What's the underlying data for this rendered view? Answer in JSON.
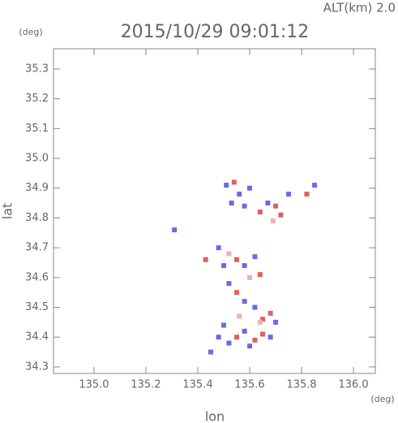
{
  "chart_data": {
    "type": "scatter",
    "title": "2015/10/29 09:01:12",
    "subtitle": "ALT(km) 2.0",
    "x_label": "lon",
    "y_label": "lat",
    "x_unit": "(deg)",
    "y_unit": "(deg)",
    "xlim": [
      134.844,
      136.084
    ],
    "ylim": [
      34.278,
      35.368
    ],
    "xticks": [
      {
        "value": 135.0,
        "label": "135.0"
      },
      135.2,
      135.4,
      135.6,
      135.8,
      {
        "value": 136.0,
        "label": "136.0"
      }
    ],
    "yticks": [
      34.3,
      34.4,
      34.5,
      34.6,
      34.7,
      34.8,
      34.9,
      {
        "value": 35.0,
        "label": "35.0"
      },
      35.1,
      35.2,
      35.3
    ],
    "x": [
      135.54,
      135.51,
      135.56,
      135.6,
      135.53,
      135.58,
      135.64,
      135.67,
      135.7,
      135.72,
      135.75,
      135.82,
      135.85,
      135.69,
      135.31,
      135.43,
      135.48,
      135.52,
      135.5,
      135.55,
      135.58,
      135.62,
      135.64,
      135.6,
      135.52,
      135.55,
      135.58,
      135.62,
      135.56,
      135.65,
      135.68,
      135.7,
      135.5,
      135.55,
      135.58,
      135.62,
      135.65,
      135.68,
      135.52,
      135.48,
      135.6,
      135.45,
      135.64
    ],
    "values": [
      34.92,
      34.91,
      34.88,
      34.9,
      34.85,
      34.84,
      34.82,
      34.85,
      34.84,
      34.81,
      34.88,
      34.88,
      34.91,
      34.79,
      34.76,
      34.66,
      34.7,
      34.68,
      34.64,
      34.66,
      34.64,
      34.67,
      34.61,
      34.6,
      34.58,
      34.55,
      34.52,
      34.5,
      34.47,
      34.46,
      34.48,
      34.45,
      34.44,
      34.4,
      34.42,
      34.39,
      34.41,
      34.4,
      34.38,
      34.4,
      34.37,
      34.35,
      34.45
    ],
    "colors": [
      "#e06060",
      "#6a6ae8",
      "#6a6ae8",
      "#6a6ae8",
      "#6a6ae8",
      "#6a6ae8",
      "#e06060",
      "#6a6ae8",
      "#e06060",
      "#e06060",
      "#6a6ae8",
      "#e06060",
      "#6a6ae8",
      "#f0b0b0",
      "#6a6ae8",
      "#e06060",
      "#6a6ae8",
      "#f0b0b0",
      "#6a6ae8",
      "#e06060",
      "#6a6ae8",
      "#6a6ae8",
      "#e06060",
      "#f0b0b0",
      "#6a6ae8",
      "#e06060",
      "#6a6ae8",
      "#6a6ae8",
      "#f0b0b0",
      "#e06060",
      "#e06060",
      "#6a6ae8",
      "#6a6ae8",
      "#e06060",
      "#6a6ae8",
      "#e06060",
      "#e06060",
      "#6a6ae8",
      "#6a6ae8",
      "#6a6ae8",
      "#6a6ae8",
      "#6a6ae8",
      "#f0b0b0"
    ]
  }
}
